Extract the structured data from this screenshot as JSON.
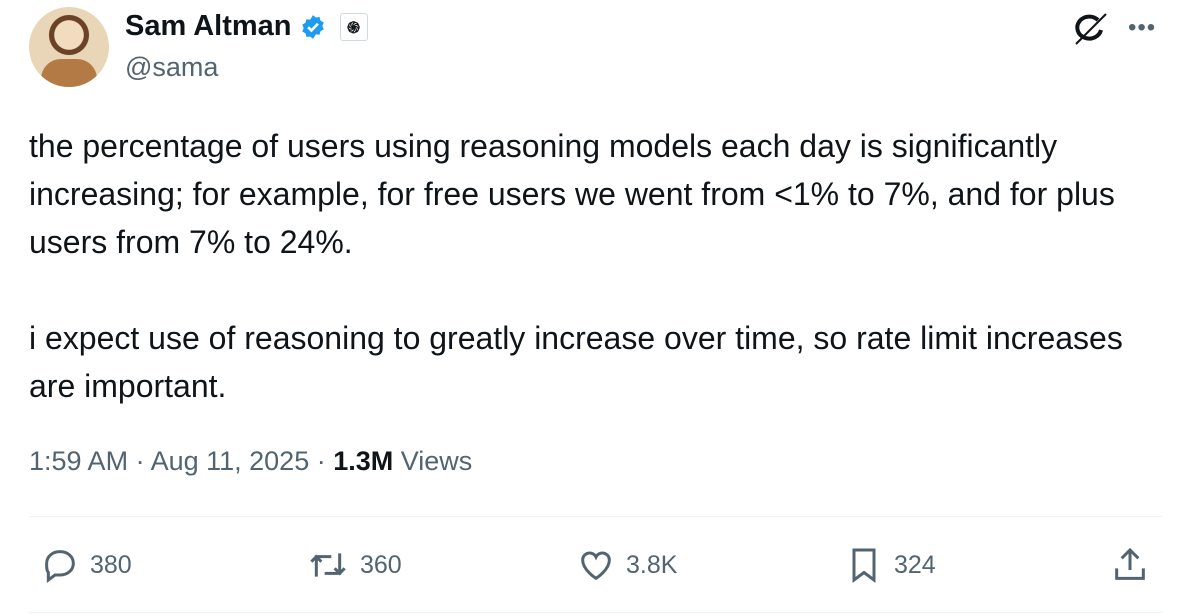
{
  "author": {
    "name": "Sam Altman",
    "handle": "@sama",
    "verified": true,
    "affiliation_icon": "openai-logo-icon"
  },
  "tweet": {
    "text": "the percentage of users using reasoning models each day is significantly increasing; for example, for free users we went from <1% to 7%, and for plus users from 7% to 24%.\n\ni expect use of reasoning to greatly increase over time, so rate limit increases are important.",
    "time": "1:59 AM",
    "date": "Aug 11, 2025",
    "views_count": "1.3M",
    "views_label": "Views"
  },
  "actions": {
    "replies": "380",
    "reposts": "360",
    "likes": "3.8K",
    "bookmarks": "324"
  },
  "colors": {
    "verified": "#1d9bf0",
    "secondary": "#536471"
  }
}
